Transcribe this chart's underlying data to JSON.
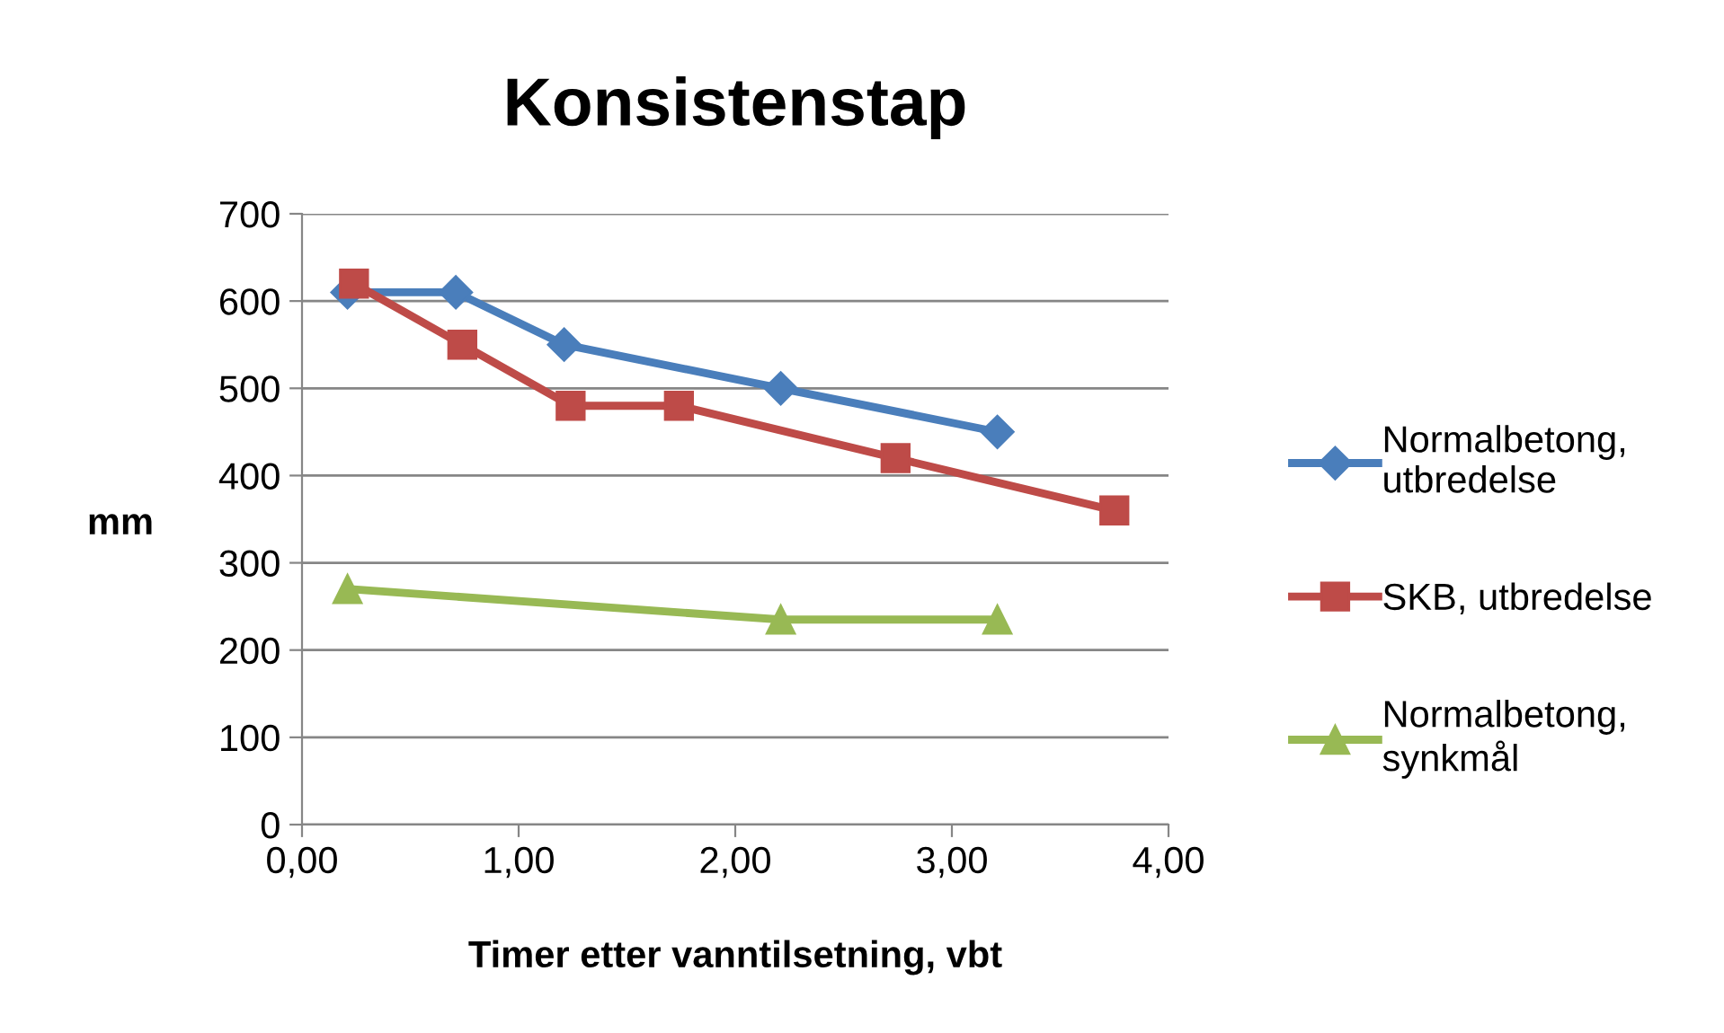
{
  "chart_data": {
    "type": "line",
    "title": "Konsistenstap",
    "xlabel": "Timer etter vanntilsetning, vbt",
    "ylabel": "mm",
    "xlim": [
      0,
      4
    ],
    "xticks": [
      {
        "value": 0,
        "label": "0,00"
      },
      {
        "value": 1,
        "label": "1,00"
      },
      {
        "value": 2,
        "label": "2,00"
      },
      {
        "value": 3,
        "label": "3,00"
      },
      {
        "value": 4,
        "label": "4,00"
      }
    ],
    "ylim": [
      0,
      700
    ],
    "yticks": [
      0,
      100,
      200,
      300,
      400,
      500,
      600,
      700
    ],
    "grid": "y",
    "legend": "right",
    "line_style": "solid",
    "series": [
      {
        "name": "Normalbetong,\nutbredelse",
        "color": "#4a7ebb",
        "marker": "diamond",
        "x": [
          0.21,
          0.71,
          1.21,
          2.21,
          3.21
        ],
        "values": [
          610,
          610,
          550,
          500,
          450
        ]
      },
      {
        "name": "SKB, utbredelse",
        "color": "#be4b48",
        "marker": "square",
        "x": [
          0.24,
          0.74,
          1.24,
          1.74,
          2.74,
          3.75
        ],
        "values": [
          620,
          550,
          480,
          480,
          420,
          360
        ]
      },
      {
        "name": "Normalbetong,\nsynkmål",
        "color": "#98b954",
        "marker": "triangle",
        "x": [
          0.21,
          2.21,
          3.21
        ],
        "values": [
          270,
          235,
          235
        ]
      }
    ]
  }
}
